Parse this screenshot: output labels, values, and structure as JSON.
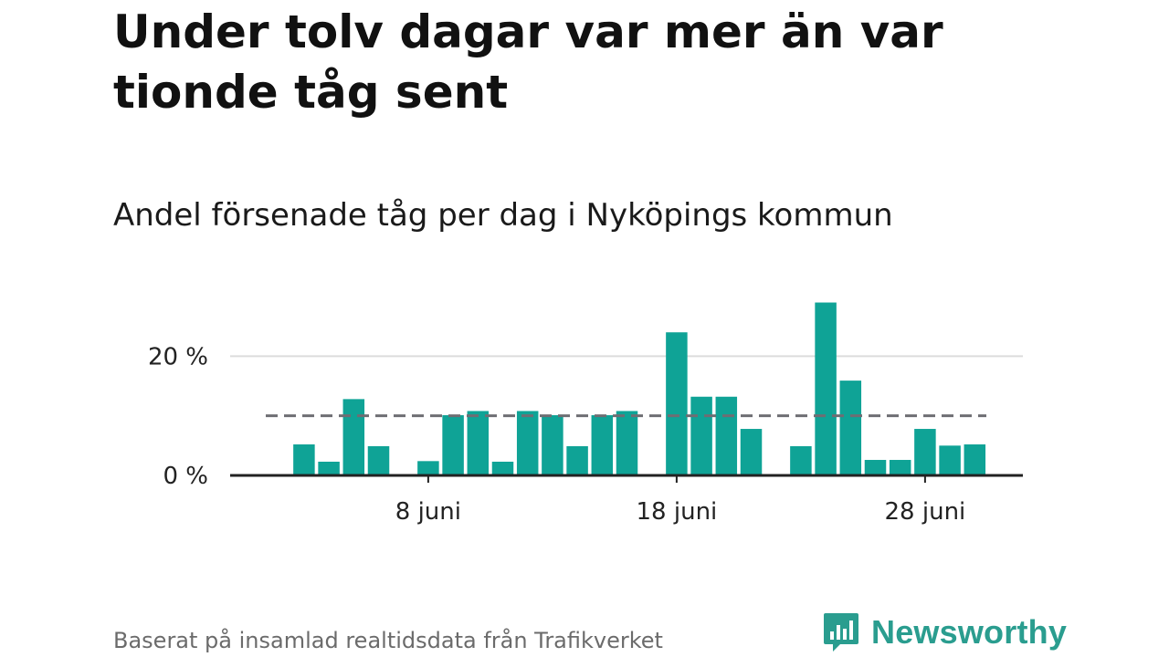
{
  "header": {
    "title": "Under tolv dagar var mer än var tionde tåg sent",
    "subtitle": "Andel försenade tåg per dag i Nyköpings kommun"
  },
  "footer": {
    "source": "Baserat på insamlad realtidsdata från Trafikverket",
    "brand": "Newsworthy"
  },
  "colors": {
    "bar": "#0fa396",
    "reference_line": "#6e6e73",
    "grid": "#dcdcdc",
    "axis": "#222222",
    "brand": "#2a9d8f"
  },
  "chart_data": {
    "type": "bar",
    "title": "Andel försenade tåg per dag i Nyköpings kommun",
    "xlabel": "",
    "ylabel": "",
    "x_unit": "day of June",
    "x": [
      1,
      2,
      3,
      4,
      5,
      6,
      7,
      8,
      9,
      10,
      11,
      12,
      13,
      14,
      15,
      16,
      17,
      18,
      19,
      20,
      21,
      22,
      23,
      24,
      25,
      26,
      27,
      28,
      29,
      30
    ],
    "values": [
      null,
      null,
      5.2,
      2.3,
      12.8,
      4.9,
      null,
      2.4,
      10.1,
      10.8,
      2.3,
      10.8,
      10.1,
      4.9,
      10.1,
      10.8,
      null,
      24.0,
      13.2,
      13.2,
      7.8,
      null,
      4.9,
      29.0,
      15.9,
      2.6,
      2.6,
      7.8,
      5.0,
      5.2
    ],
    "reference_line": {
      "value": 10,
      "style": "dashed"
    },
    "ylim": [
      0,
      30
    ],
    "yticks": [
      {
        "value": 0,
        "label": "0 %"
      },
      {
        "value": 20,
        "label": "20 %"
      }
    ],
    "xticks": [
      {
        "value": 8,
        "label": "8 juni"
      },
      {
        "value": 18,
        "label": "18 juni"
      },
      {
        "value": 28,
        "label": "28 juni"
      }
    ],
    "grid": true,
    "legend": "none"
  }
}
